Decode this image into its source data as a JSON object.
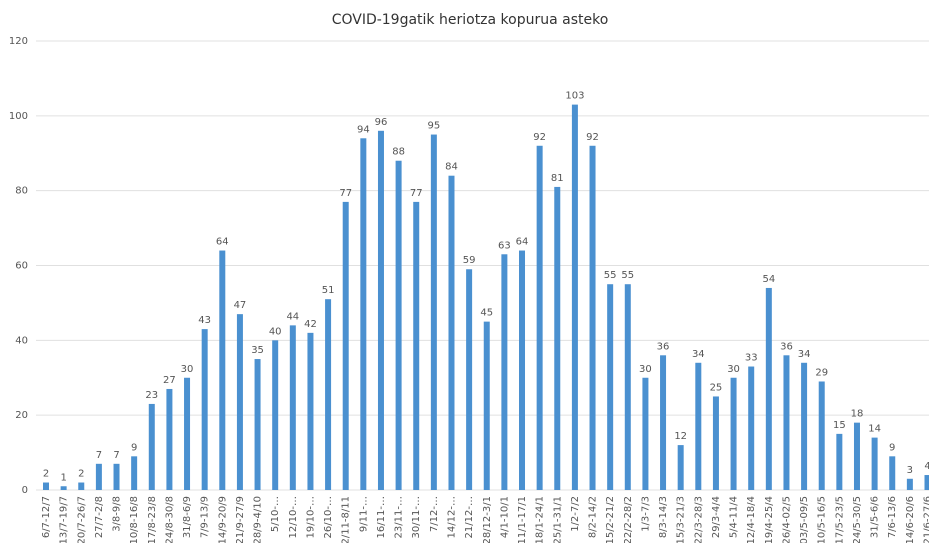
{
  "chart_data": {
    "type": "bar",
    "title": "COVID-19gatik heriotza kopurua asteko",
    "categories": [
      "6/7-12/7",
      "13/7-19/7",
      "20/7-26/7",
      "27/7-2/8",
      "3/8-9/8",
      "10/8-16/8",
      "17/8-23/8",
      "24/8-30/8",
      "31/8-6/9",
      "7/9-13/9",
      "14/9-20/9",
      "21/9-27/9",
      "28/9-4/10",
      "5/10-…",
      "12/10-…",
      "19/10-…",
      "26/10-…",
      "2/11-8/11",
      "9/11-…",
      "16/11-…",
      "23/11-…",
      "30/11-…",
      "7/12-…",
      "14/12-…",
      "21/12-…",
      "28/12-3/1",
      "4/1-10/1",
      "11/1-17/1",
      "18/1-24/1",
      "25/1-31/1",
      "1/2-7/2",
      "8/2-14/2",
      "15/2-21/2",
      "22/2-28/2",
      "1/3-7/3",
      "8/3-14/3",
      "15/3-21/3",
      "22/3-28/3",
      "29/3-4/4",
      "5/4-11/4",
      "12/4-18/4",
      "19/4-25/4",
      "26/4-02/5",
      "03/5-09/5",
      "10/5-16/5",
      "17/5-23/5",
      "24/5-30/5",
      "31/5-6/6",
      "7/6-13/6",
      "14/6-20/6",
      "21/6-27/6"
    ],
    "values": [
      2,
      1,
      2,
      7,
      7,
      9,
      23,
      27,
      30,
      43,
      64,
      47,
      35,
      40,
      44,
      42,
      51,
      77,
      94,
      96,
      88,
      77,
      95,
      84,
      59,
      45,
      63,
      64,
      92,
      81,
      103,
      92,
      55,
      55,
      30,
      36,
      12,
      34,
      25,
      30,
      33,
      54,
      36,
      34,
      29,
      15,
      18,
      14,
      9,
      3,
      4
    ],
    "color": "#4a90d0",
    "ylim": [
      0,
      120
    ],
    "yticks": [
      0,
      20,
      40,
      60,
      80,
      100,
      120
    ],
    "grid": true
  }
}
